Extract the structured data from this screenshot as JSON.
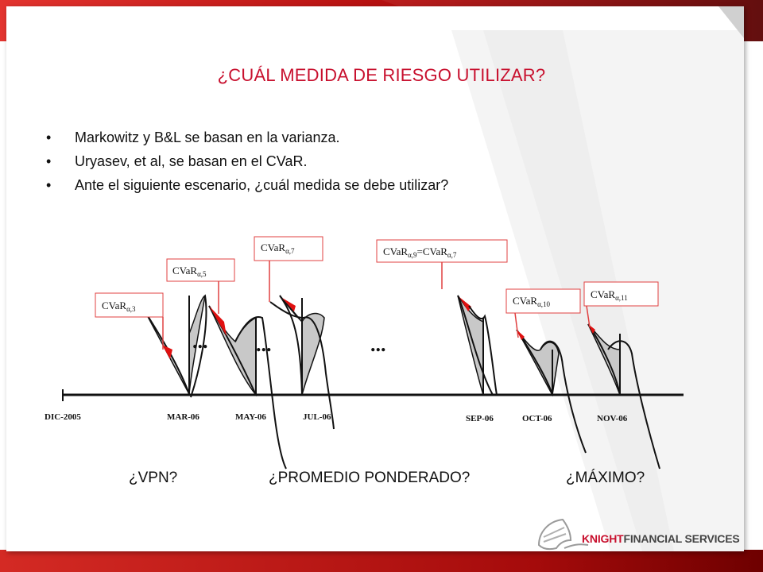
{
  "title": "¿CUÁL MEDIDA DE RIESGO UTILIZAR?",
  "bullet_symbol": "•",
  "bullets": [
    "Markowitz y B&L se basan en la varianza.",
    "Uryasev, et al, se basan en el CVaR.",
    "Ante el siguiente escenario, ¿cuál medida se debe utilizar?"
  ],
  "diagram": {
    "timeline": [
      "DIC-2005",
      "MAR-06",
      "MAY-06",
      "JUL-06",
      "SEP-06",
      "OCT-06",
      "NOV-06"
    ],
    "ellipsis": "...",
    "cvar_base": "CVaR",
    "alpha": "α",
    "labels": [
      {
        "sub": "α,3"
      },
      {
        "sub": "α,5"
      },
      {
        "sub": "α,7"
      },
      {
        "sub": "α,9",
        "eq": "=CVaR",
        "sub2": "α,7"
      },
      {
        "sub": "α,10"
      },
      {
        "sub": "α,11"
      }
    ],
    "colors": {
      "tail": "#e01010",
      "fill": "#c8c8c8",
      "box_border": "#e04040"
    }
  },
  "questions": [
    "¿VPN?",
    "¿PROMEDIO PONDERADO?",
    "¿MÁXIMO?"
  ],
  "logo": {
    "brand_a": "KNIGHT",
    "brand_b": "FINANCIAL SERVICES"
  },
  "theme": {
    "accent": "#c8102e",
    "band_dark": "#6e0000"
  }
}
